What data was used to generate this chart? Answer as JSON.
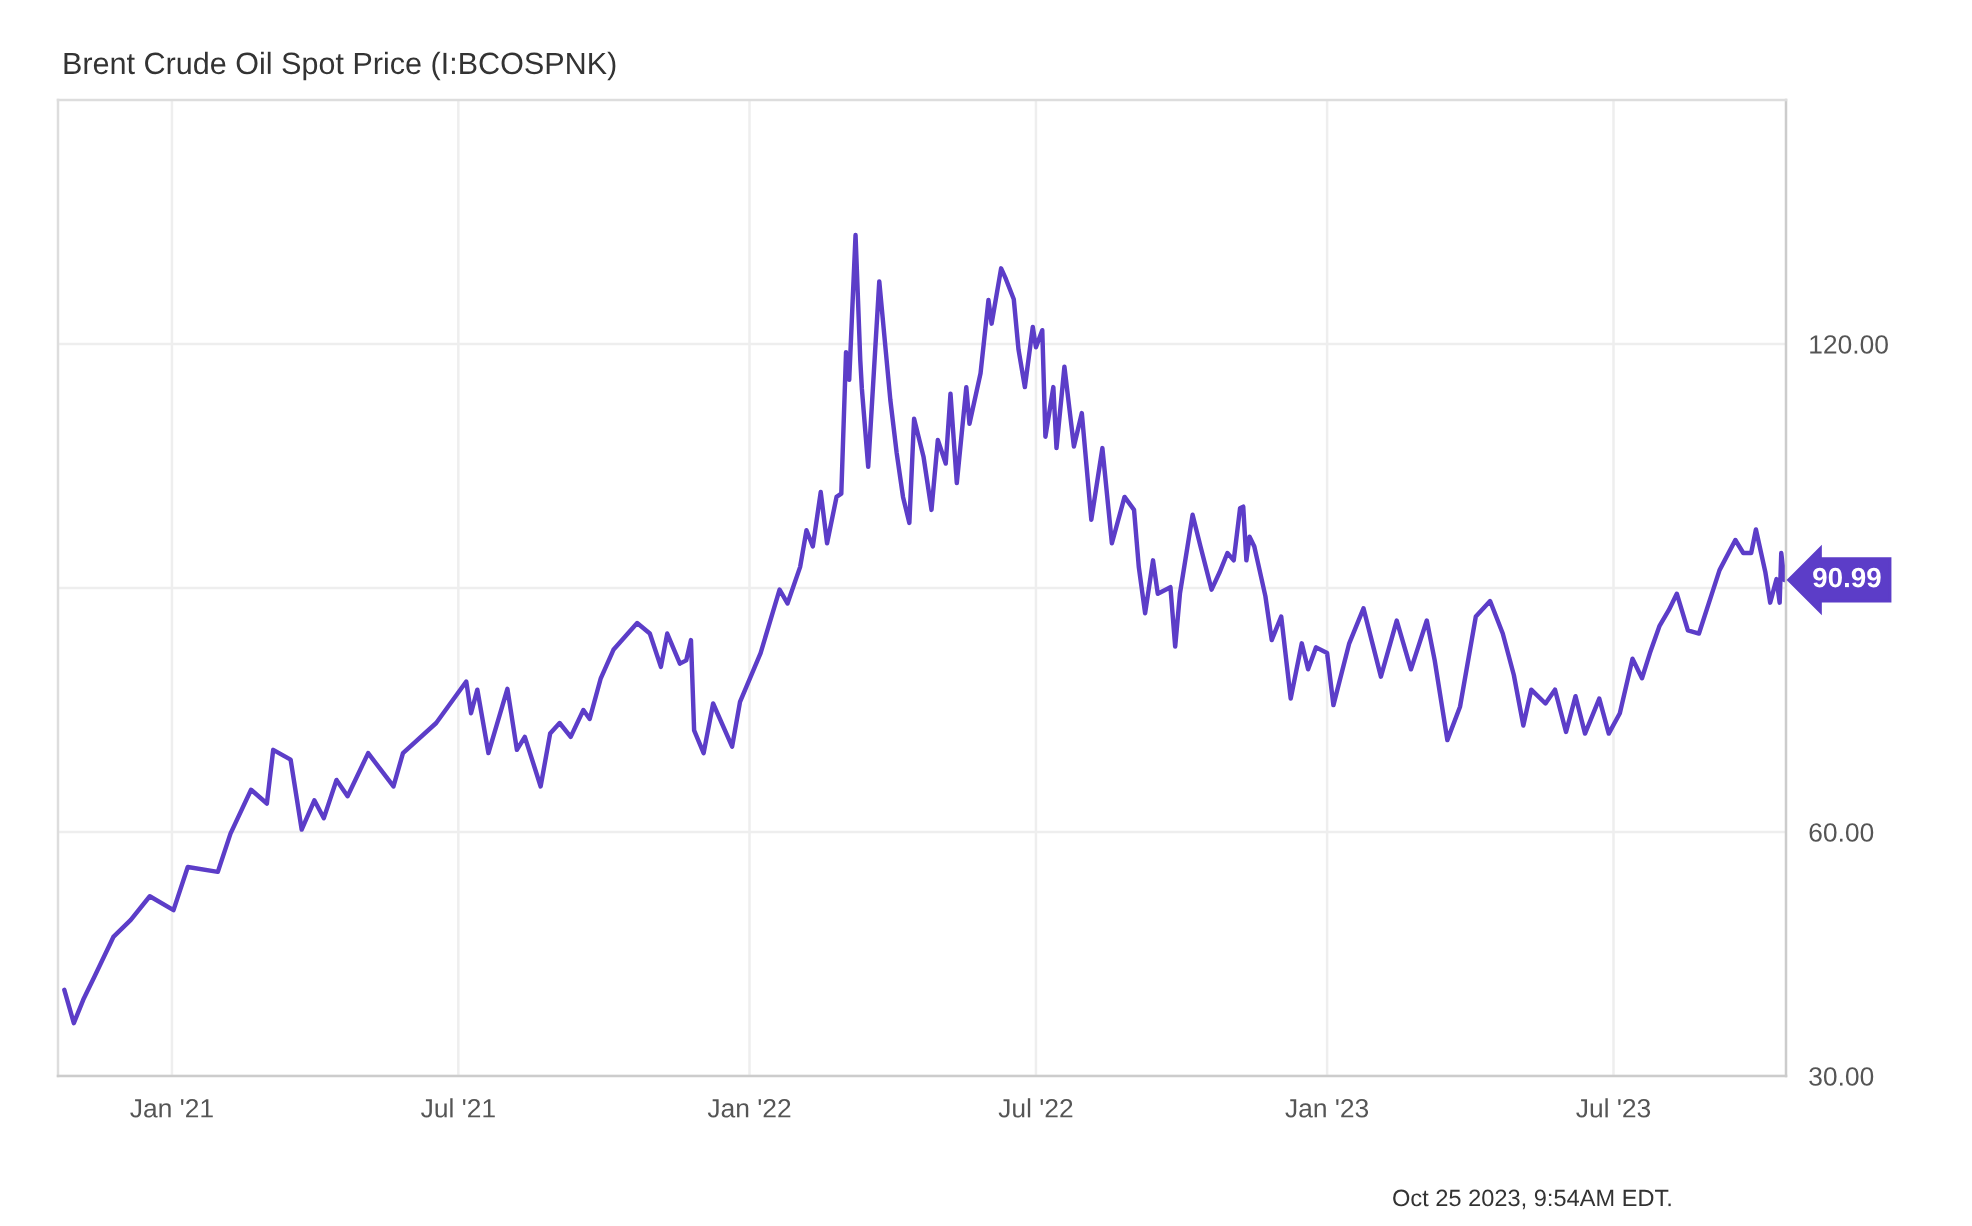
{
  "chart_data": {
    "type": "line",
    "title": "Brent Crude Oil Spot Price (I:BCOSPNK)",
    "x": [
      "2020-10-25",
      "2020-10-31",
      "2020-11-06",
      "2020-11-13",
      "2020-11-25",
      "2020-12-06",
      "2020-12-18",
      "2021-01-02",
      "2021-01-11",
      "2021-01-30",
      "2021-02-07",
      "2021-02-20",
      "2021-03-02",
      "2021-03-06",
      "2021-03-17",
      "2021-03-24",
      "2021-04-01",
      "2021-04-07",
      "2021-04-15",
      "2021-04-22",
      "2021-05-05",
      "2021-05-21",
      "2021-05-27",
      "2021-06-17",
      "2021-07-06",
      "2021-07-09",
      "2021-07-13",
      "2021-07-20",
      "2021-08-01",
      "2021-08-07",
      "2021-08-12",
      "2021-08-22",
      "2021-08-28",
      "2021-09-03",
      "2021-09-10",
      "2021-09-18",
      "2021-09-22",
      "2021-09-29",
      "2021-10-07",
      "2021-10-22",
      "2021-10-30",
      "2021-11-06",
      "2021-11-10",
      "2021-11-18",
      "2021-11-22",
      "2021-11-25",
      "2021-11-27",
      "2021-12-03",
      "2021-12-09",
      "2021-12-21",
      "2021-12-26",
      "2022-01-08",
      "2022-01-20",
      "2022-01-25",
      "2022-02-02",
      "2022-02-06",
      "2022-02-10",
      "2022-02-15",
      "2022-02-19",
      "2022-02-25",
      "2022-02-28",
      "2022-03-03",
      "2022-03-05",
      "2022-03-09",
      "2022-03-12",
      "2022-03-13",
      "2022-03-17",
      "2022-03-24",
      "2022-03-31",
      "2022-04-04",
      "2022-04-08",
      "2022-04-12",
      "2022-04-15",
      "2022-04-21",
      "2022-04-26",
      "2022-04-30",
      "2022-05-05",
      "2022-05-08",
      "2022-05-12",
      "2022-05-18",
      "2022-05-20",
      "2022-05-27",
      "2022-06-01",
      "2022-06-03",
      "2022-06-09",
      "2022-06-12",
      "2022-06-17",
      "2022-06-20",
      "2022-06-24",
      "2022-06-29",
      "2022-07-01",
      "2022-07-05",
      "2022-07-07",
      "2022-07-12",
      "2022-07-14",
      "2022-07-19",
      "2022-07-25",
      "2022-07-30",
      "2022-08-05",
      "2022-08-12",
      "2022-08-18",
      "2022-08-26",
      "2022-09-01",
      "2022-09-04",
      "2022-09-08",
      "2022-09-13",
      "2022-09-16",
      "2022-09-24",
      "2022-09-27",
      "2022-09-30",
      "2022-10-08",
      "2022-10-13",
      "2022-10-20",
      "2022-10-25",
      "2022-10-30",
      "2022-11-03",
      "2022-11-07",
      "2022-11-09",
      "2022-11-11",
      "2022-11-13",
      "2022-11-16",
      "2022-11-23",
      "2022-11-27",
      "2022-12-03",
      "2022-12-09",
      "2022-12-16",
      "2022-12-20",
      "2022-12-25",
      "2023-01-01",
      "2023-01-05",
      "2023-01-15",
      "2023-01-24",
      "2023-02-04",
      "2023-02-14",
      "2023-02-23",
      "2023-03-05",
      "2023-03-10",
      "2023-03-18",
      "2023-03-26",
      "2023-04-05",
      "2023-04-14",
      "2023-04-22",
      "2023-04-29",
      "2023-05-05",
      "2023-05-10",
      "2023-05-19",
      "2023-05-25",
      "2023-06-01",
      "2023-06-07",
      "2023-06-13",
      "2023-06-22",
      "2023-06-28",
      "2023-07-05",
      "2023-07-13",
      "2023-07-19",
      "2023-07-24",
      "2023-07-30",
      "2023-08-05",
      "2023-08-10",
      "2023-08-17",
      "2023-08-24",
      "2023-09-02",
      "2023-09-06",
      "2023-09-16",
      "2023-09-21",
      "2023-09-26",
      "2023-09-29",
      "2023-10-05",
      "2023-10-08",
      "2023-10-12",
      "2023-10-14",
      "2023-10-15",
      "2023-10-17"
    ],
    "series": [
      {
        "color": "#5c3dc8",
        "values": [
          40.6,
          36.5,
          39.4,
          42.2,
          47.1,
          49.2,
          52.1,
          50.4,
          55.7,
          55.1,
          59.8,
          65.2,
          63.5,
          70.1,
          68.9,
          60.3,
          63.9,
          61.7,
          66.4,
          64.4,
          69.7,
          65.6,
          69.7,
          73.4,
          78.5,
          74.6,
          77.5,
          69.7,
          77.6,
          70.1,
          71.7,
          65.6,
          72.1,
          73.4,
          71.7,
          75.0,
          73.9,
          78.9,
          82.4,
          85.7,
          84.4,
          80.3,
          84.4,
          80.7,
          81.1,
          83.6,
          72.5,
          69.7,
          75.8,
          70.5,
          76.0,
          82.0,
          89.8,
          88.1,
          92.6,
          97.1,
          95.1,
          101.8,
          95.5,
          101.2,
          101.6,
          119.0,
          115.6,
          133.4,
          118.0,
          114.5,
          104.9,
          127.7,
          113.1,
          106.6,
          101.2,
          98.0,
          110.8,
          106.1,
          99.6,
          108.2,
          105.3,
          113.9,
          102.9,
          114.7,
          110.2,
          116.4,
          125.4,
          122.5,
          129.3,
          128.0,
          125.5,
          119.3,
          114.7,
          122.1,
          119.6,
          121.7,
          108.6,
          114.7,
          107.2,
          117.2,
          107.4,
          111.5,
          98.4,
          107.2,
          95.5,
          101.2,
          99.6,
          92.6,
          86.9,
          93.4,
          89.3,
          90.1,
          82.8,
          89.3,
          99.0,
          95.1,
          89.8,
          91.9,
          94.3,
          93.4,
          99.8,
          100.0,
          93.4,
          96.3,
          95.1,
          89.0,
          83.6,
          86.5,
          76.4,
          83.2,
          80.0,
          82.7,
          82.0,
          75.6,
          83.2,
          87.5,
          79.1,
          86.0,
          80.0,
          86.0,
          81.1,
          71.3,
          75.4,
          86.5,
          88.4,
          84.4,
          79.3,
          73.1,
          77.5,
          75.8,
          77.5,
          72.3,
          76.7,
          72.1,
          76.4,
          72.1,
          74.6,
          81.3,
          78.9,
          82.0,
          85.3,
          87.3,
          89.3,
          84.8,
          84.4,
          89.8,
          92.2,
          95.9,
          94.3,
          94.3,
          97.2,
          91.9,
          88.2,
          91.1,
          88.2,
          94.3,
          90.99
        ]
      }
    ],
    "xlim": [
      "2020-10-21",
      "2023-10-18"
    ],
    "xticks": [
      {
        "value": "2021-01-01",
        "label": "Jan '21"
      },
      {
        "value": "2021-07-01",
        "label": "Jul '21"
      },
      {
        "value": "2022-01-01",
        "label": "Jan '22"
      },
      {
        "value": "2022-07-01",
        "label": "Jul '22"
      },
      {
        "value": "2023-01-01",
        "label": "Jan '23"
      },
      {
        "value": "2023-07-01",
        "label": "Jul '23"
      }
    ],
    "ylim": [
      30,
      150
    ],
    "yticks": [
      {
        "value": 30,
        "label": "30.00"
      },
      {
        "value": 60,
        "label": "60.00"
      },
      {
        "value": 90,
        "label": null
      },
      {
        "value": 120,
        "label": "120.00"
      }
    ],
    "grid": true,
    "annotations": [
      {
        "text": "90.99",
        "x": "2023-10-17",
        "y": 90.99
      },
      "Oct 25 2023, 9:54AM EDT."
    ]
  }
}
